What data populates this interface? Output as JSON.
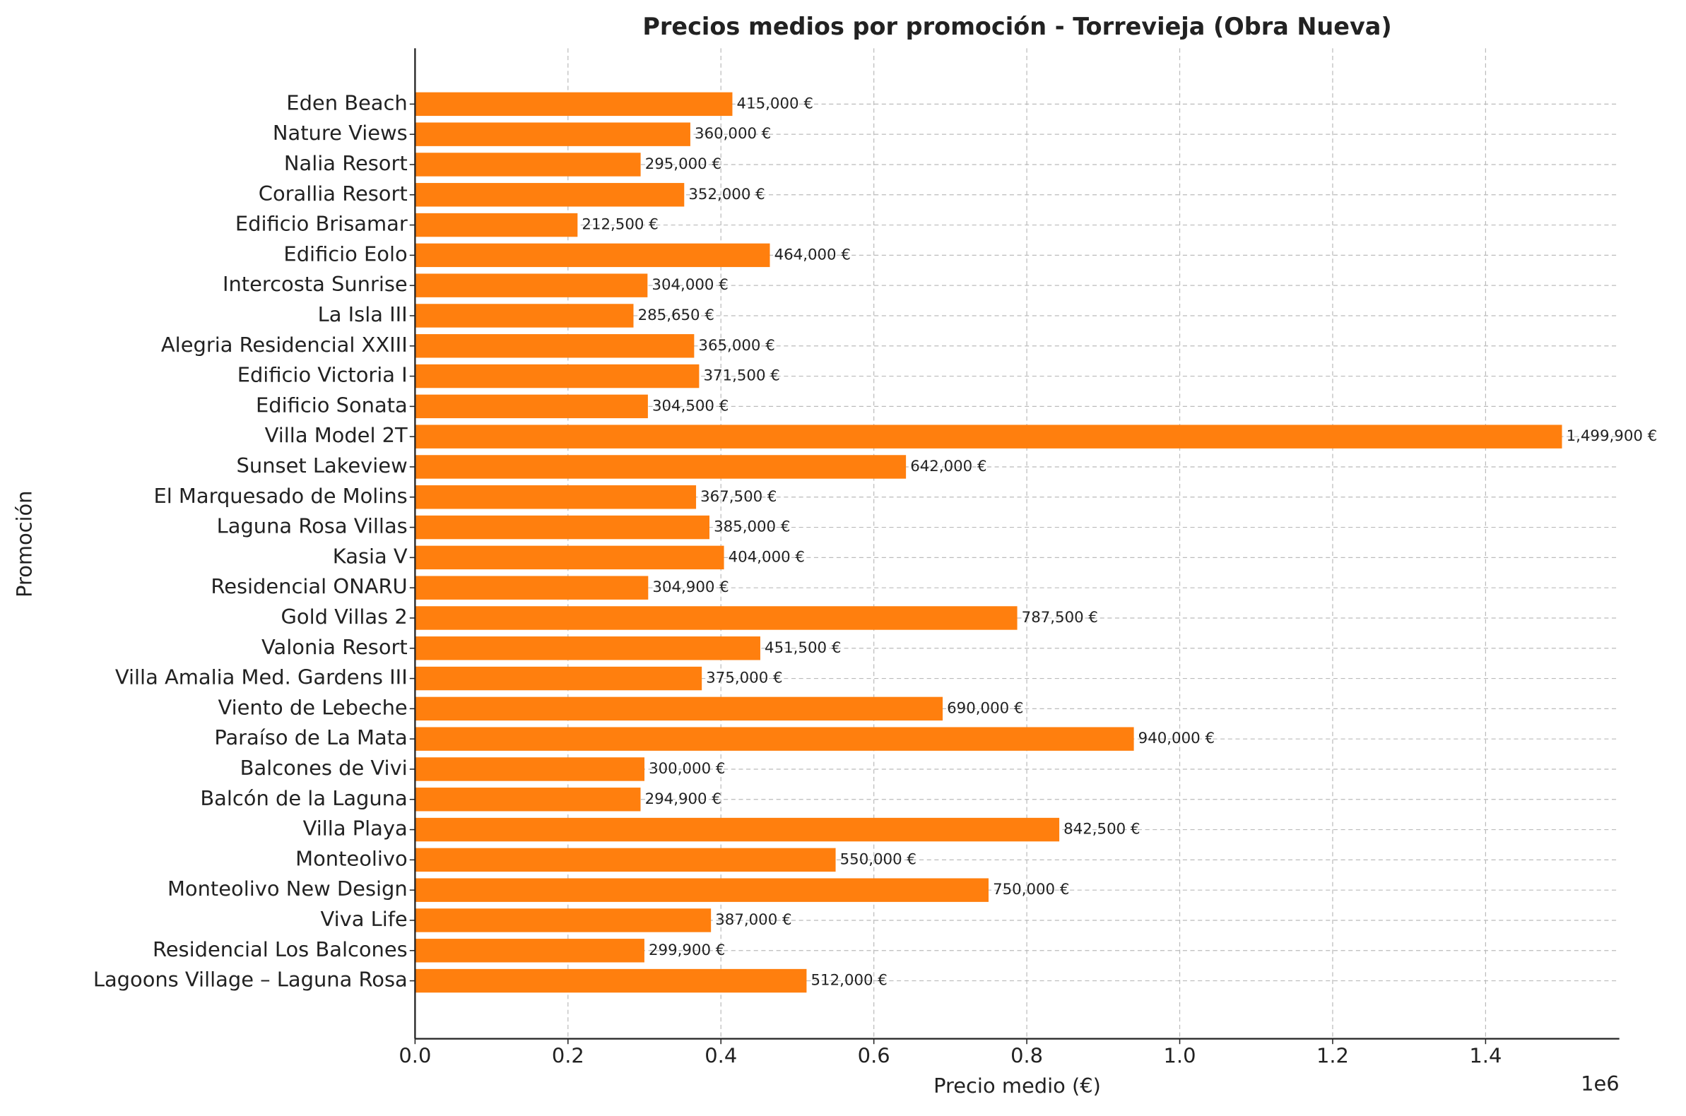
{
  "chart_data": {
    "type": "barh",
    "title": "Precios medios por promoción - Torrevieja (Obra Nueva)",
    "x_label": "Precio medio (€)",
    "y_label": "Promoción",
    "x_offset_label": "1e6",
    "color": "#ff7f0e",
    "grid": true,
    "categories": [
      "Eden Beach",
      "Nature Views",
      "Nalia Resort",
      "Corallia Resort",
      "Edificio Brisamar",
      "Edificio Eolo",
      "Intercosta Sunrise",
      "La Isla III",
      "Alegria Residencial XXIII",
      "Edificio Victoria I",
      "Edificio Sonata",
      "Villa Model 2T",
      "Sunset Lakeview",
      "El Marquesado de Molins",
      "Laguna Rosa Villas",
      "Kasia V",
      "Residencial ONARU",
      "Gold Villas 2",
      "Valonia Resort",
      "Villa Amalia Med. Gardens III",
      "Viento de Lebeche",
      "Paraíso de La Mata",
      "Balcones de Vivi",
      "Balcón de la Laguna",
      "Villa Playa",
      "Monteolivo",
      "Monteolivo New Design",
      "Viva Life",
      "Residencial Los Balcones",
      "Lagoons Village – Laguna Rosa"
    ],
    "values": [
      415000,
      360000,
      295000,
      352000,
      212500,
      464000,
      304000,
      285650,
      365000,
      371500,
      304500,
      1499900,
      642000,
      367500,
      385000,
      404000,
      304900,
      787500,
      451500,
      375000,
      690000,
      940000,
      300000,
      294900,
      842500,
      550000,
      750000,
      387000,
      299900,
      512000
    ],
    "value_labels": [
      "415,000 €",
      "360,000 €",
      "295,000 €",
      "352,000 €",
      "212,500 €",
      "464,000 €",
      "304,000 €",
      "285,650 €",
      "365,000 €",
      "371,500 €",
      "304,500 €",
      "1,499,900 €",
      "642,000 €",
      "367,500 €",
      "385,000 €",
      "404,000 €",
      "304,900 €",
      "787,500 €",
      "451,500 €",
      "375,000 €",
      "690,000 €",
      "940,000 €",
      "300,000 €",
      "294,900 €",
      "842,500 €",
      "550,000 €",
      "750,000 €",
      "387,000 €",
      "299,900 €",
      "512,000 €"
    ],
    "xlim": [
      0,
      1574895
    ],
    "xticks": [
      {
        "value": 0,
        "label": "0.0"
      },
      {
        "value": 200000,
        "label": "0.2"
      },
      {
        "value": 400000,
        "label": "0.4"
      },
      {
        "value": 600000,
        "label": "0.6"
      },
      {
        "value": 800000,
        "label": "0.8"
      },
      {
        "value": 1000000,
        "label": "1.0"
      },
      {
        "value": 1200000,
        "label": "1.2"
      },
      {
        "value": 1400000,
        "label": "1.4"
      }
    ]
  }
}
